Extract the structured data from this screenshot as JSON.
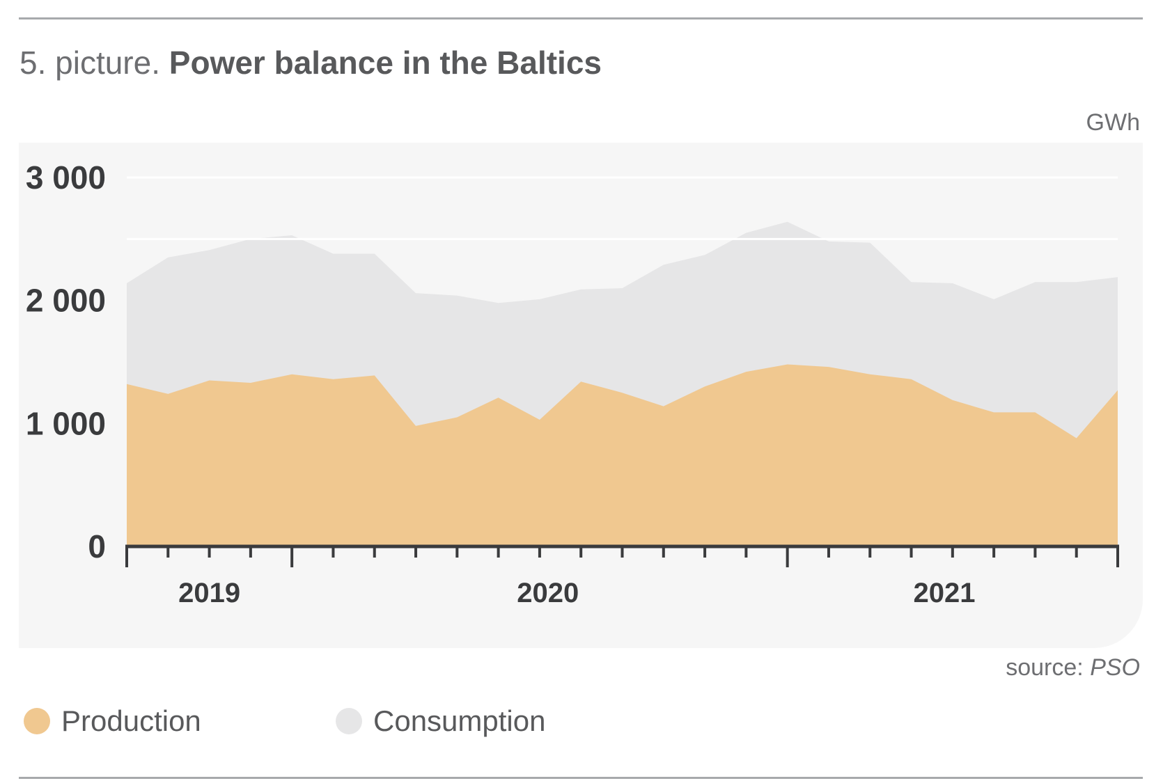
{
  "header": {
    "title_prefix": "5. picture.",
    "title_main": "Power balance in the Baltics",
    "unit": "GWh"
  },
  "footer": {
    "source_label": "source:",
    "source_name": "PSO"
  },
  "legend": [
    {
      "label": "Production",
      "color": "#f0c890"
    },
    {
      "label": "Consumption",
      "color": "#e6e6e7"
    }
  ],
  "colors": {
    "production": "#f0c890",
    "consumption": "#e6e6e7",
    "panel": "#f6f6f6",
    "axis": "#3a3b3d",
    "gridline": "#ffffff"
  },
  "chart_data": {
    "type": "area",
    "title": "Power balance in the Baltics",
    "ylabel": "GWh",
    "ylim": [
      0,
      3000
    ],
    "yticks": [
      0,
      1000,
      2000,
      3000
    ],
    "ytick_labels": [
      "0",
      "1 000",
      "2 000",
      "3 000"
    ],
    "gridlines": [
      3000,
      2500
    ],
    "x_count": 25,
    "year_labels": [
      {
        "label": "2019",
        "at": 2
      },
      {
        "label": "2020",
        "at": 10.2
      },
      {
        "label": "2021",
        "at": 19.8
      }
    ],
    "major_ticks": [
      0,
      4,
      16,
      24
    ],
    "series": [
      {
        "name": "Production",
        "values": [
          1320,
          1240,
          1350,
          1330,
          1400,
          1360,
          1390,
          980,
          1050,
          1210,
          1030,
          1340,
          1250,
          1140,
          1300,
          1420,
          1480,
          1460,
          1400,
          1360,
          1190,
          1090,
          1090,
          880,
          1270
        ]
      },
      {
        "name": "Consumption",
        "values": [
          2140,
          2350,
          2410,
          2500,
          2530,
          2380,
          2380,
          2060,
          2040,
          1980,
          2010,
          2090,
          2100,
          2290,
          2370,
          2550,
          2640,
          2480,
          2470,
          2150,
          2140,
          2010,
          2150,
          2150,
          2190
        ]
      }
    ],
    "grid": true,
    "legend_position": "bottom-left"
  }
}
